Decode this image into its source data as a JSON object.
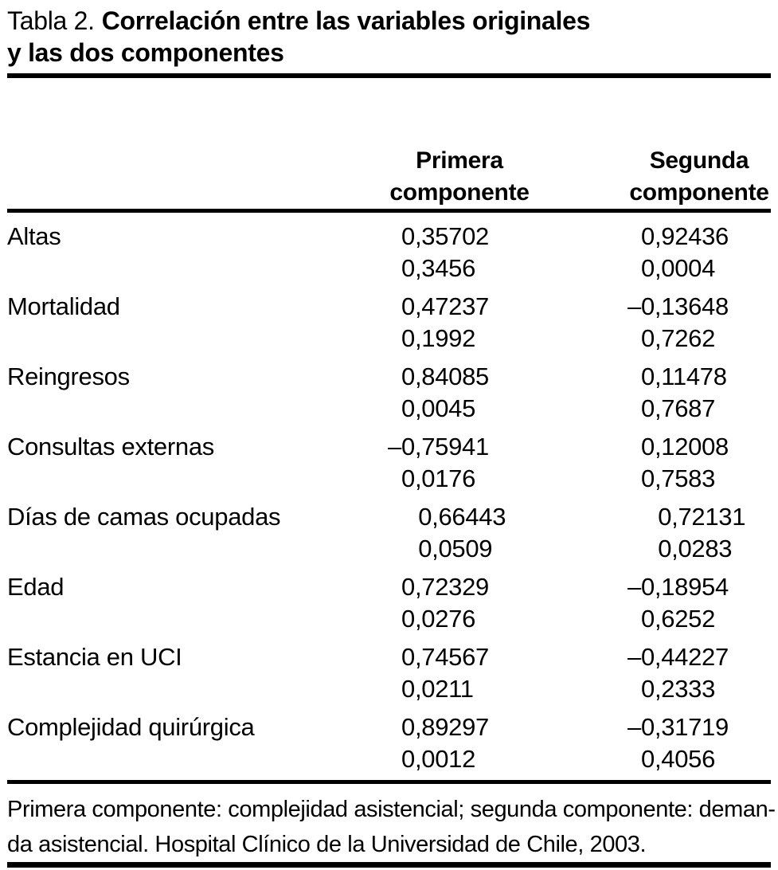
{
  "page": {
    "background": "#ffffff",
    "text_color": "#000000",
    "rule_color": "#000000"
  },
  "title": {
    "prefix": "Tabla 2.",
    "bold_line1": "Correlación entre las variables originales",
    "bold_line2": "y las dos componentes"
  },
  "header": {
    "col1_label": "Primera componente",
    "col2_label": "Segunda componente"
  },
  "chart_data": {
    "type": "table",
    "title": "Tabla 2. Correlación entre las variables originales y las dos componentes",
    "columns": [
      "",
      "Primera componente",
      "Segunda componente"
    ],
    "rows": [
      {
        "variable": "Altas",
        "c1": {
          "r": "0,35702",
          "p": "0,3456"
        },
        "c2": {
          "r": "0,92436",
          "p": "0,0004"
        }
      },
      {
        "variable": "Mortalidad",
        "c1": {
          "r": "0,47237",
          "p": "0,1992"
        },
        "c2": {
          "r": "–0,13648",
          "p": "0,7262"
        }
      },
      {
        "variable": "Reingresos",
        "c1": {
          "r": "0,84085",
          "p": "0,0045"
        },
        "c2": {
          "r": "0,11478",
          "p": "0,7687"
        }
      },
      {
        "variable": "Consultas externas",
        "c1": {
          "r": "–0,75941",
          "p": "0,0176"
        },
        "c2": {
          "r": "0,12008",
          "p": "0,7583"
        }
      },
      {
        "variable": "Días de camas ocupadas",
        "c1": {
          "r": "0,66443",
          "p": "0,0509"
        },
        "c2": {
          "r": "0,72131",
          "p": "0,0283"
        }
      },
      {
        "variable": "Edad",
        "c1": {
          "r": "0,72329",
          "p": "0,0276"
        },
        "c2": {
          "r": "–0,18954",
          "p": "0,6252"
        }
      },
      {
        "variable": "Estancia en UCI",
        "c1": {
          "r": "0,74567",
          "p": "0,0211"
        },
        "c2": {
          "r": "–0,44227",
          "p": "0,2333"
        }
      },
      {
        "variable": "Complejidad quirúrgica",
        "c1": {
          "r": "0,89297",
          "p": "0,0012"
        },
        "c2": {
          "r": "–0,31719",
          "p": "0,4056"
        }
      }
    ]
  },
  "footnote": {
    "line1": "Primera componente: complejidad asistencial; segunda componente: deman-",
    "line2": "da asistencial. Hospital Clínico de la Universidad de Chile, 2003."
  }
}
